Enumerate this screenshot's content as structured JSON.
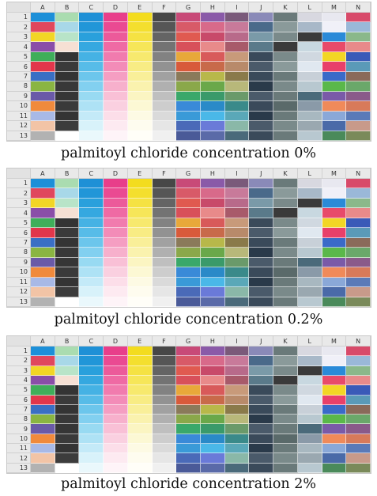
{
  "column_headers": [
    "A",
    "B",
    "C",
    "D",
    "E",
    "F",
    "G",
    "H",
    "I",
    "J",
    "K",
    "L",
    "M",
    "N"
  ],
  "row_headers": [
    "1",
    "2",
    "3",
    "4",
    "5",
    "6",
    "7",
    "8",
    "9",
    "10",
    "11",
    "12",
    "13"
  ],
  "panels": [
    {
      "caption": "palmitoyl chloride concentration 0%"
    },
    {
      "caption": "palmitoyl chloride concentration 0.2%"
    },
    {
      "caption": "palmitoyl chloride concentration 2%"
    }
  ],
  "colors": {
    "col_A": [
      "#1c8fd8",
      "#e0475d",
      "#f2d625",
      "#8a4ea8",
      "#3fae5a",
      "#e2364b",
      "#3a6fc4",
      "#8ab542",
      "#6a5aa8",
      "#f08a3c",
      "#a8b9e6",
      "#f2c4a6",
      "#b2b2b2"
    ],
    "col_B": [
      "#aadcb0",
      "#a8d8e8",
      "#b8e4c8",
      "#f6e0d4",
      "#343434",
      "#3a3a3a",
      "#343434",
      "#383838",
      "#363636",
      "#3a3a3a",
      "#343434",
      "#3c3c3c",
      "#ffffff"
    ],
    "col_C": [
      "#1e90d6",
      "#2196d8",
      "#29a0dc",
      "#35a8e0",
      "#45b2e4",
      "#57bce8",
      "#6cc6ec",
      "#82d0f0",
      "#98daf2",
      "#aee2f5",
      "#c4eaf8",
      "#d8f2fa",
      "#eaf8fc"
    ],
    "col_D": [
      "#e83e8a",
      "#ea4a92",
      "#ec5a9a",
      "#ef6aa4",
      "#f17bae",
      "#f38cb8",
      "#f59ec2",
      "#f7b0cc",
      "#f9c0d6",
      "#fad0e0",
      "#fcdee9",
      "#fdeaf1",
      "#fef4f8"
    ],
    "col_E": [
      "#f3dc1e",
      "#f4df2e",
      "#f5e243",
      "#f6e659",
      "#f7e96e",
      "#f8ec84",
      "#f9ef99",
      "#faf2ae",
      "#fbf5c2",
      "#fcf8d4",
      "#fdfae4",
      "#fefcef",
      "#fffef8"
    ],
    "col_F": [
      "#474747",
      "#565656",
      "#646464",
      "#737373",
      "#828282",
      "#929292",
      "#a1a1a1",
      "#b0b0b0",
      "#bfbfbf",
      "#cdcdcd",
      "#dadada",
      "#e6e6e6",
      "#f0f0f0"
    ],
    "col_G": [
      "#c84a78",
      "#d85a68",
      "#e05a50",
      "#d8505a",
      "#e8a83a",
      "#d85a3a",
      "#8a7a5a",
      "#8aa84a",
      "#3aa86a",
      "#3a8ad8",
      "#3a9ad8",
      "#4a6ab8",
      "#4a5a98"
    ],
    "col_H": [
      "#8a5aa8",
      "#d86a8a",
      "#c84a6a",
      "#e88a8a",
      "#d85a5a",
      "#c86a4a",
      "#b8b84a",
      "#6aa84a",
      "#3a9a6a",
      "#2a8ac8",
      "#4ab8e8",
      "#6a7ad8",
      "#5a6aa8"
    ],
    "col_I": [
      "#7a5a7a",
      "#c87a9a",
      "#b86a8a",
      "#a85a6a",
      "#c89a7a",
      "#b88a6a",
      "#8a7a4a",
      "#b8b87a",
      "#6a9a6a",
      "#3a8a8a",
      "#5aa8b8",
      "#8ab8a8",
      "#4a6a7a"
    ],
    "col_J": [
      "#8a8ab8",
      "#4a6a8a",
      "#7a9aa8",
      "#5a7a8a",
      "#3a4a5a",
      "#4a5a6a",
      "#3a4a5a",
      "#2a3a4a",
      "#4a5a6a",
      "#3a4a5a",
      "#2a3a4a",
      "#4a5a6a",
      "#3a4a5a"
    ],
    "col_K": [
      "#6a7a7a",
      "#8a9a9a",
      "#7a8a8a",
      "#3a3a3a",
      "#7a8a8a",
      "#8a9a9a",
      "#6a7a7a",
      "#7a8a8a",
      "#6a7a7a",
      "#5a6a6a",
      "#6a7a7a",
      "#7a8a8a",
      "#6a7a7a"
    ],
    "col_L": [
      "#d8d8e0",
      "#a8b8c8",
      "#3a3a3a",
      "#c8d8e0",
      "#d0d8e0",
      "#e0e8f0",
      "#c8d0d8",
      "#b8c8d0",
      "#4a6a7a",
      "#8a9aa8",
      "#a8b8c0",
      "#9aa8b0",
      "#b8c8d0"
    ],
    "col_M": [
      "#e8e8f0",
      "#f0f0f8",
      "#2a8ad8",
      "#e84a6a",
      "#f2d625",
      "#e8406a",
      "#3a6ac8",
      "#5ab84a",
      "#7a5aa8",
      "#f08a5a",
      "#8aa8d8",
      "#4a6aa8",
      "#4a8a5a"
    ],
    "col_N": [
      "#d84a6a",
      "#9ab8d8",
      "#8ab88a",
      "#e88a8a",
      "#3a5ab8",
      "#5a9ab8",
      "#8a6a5a",
      "#6aa86a",
      "#8a5a8a",
      "#d87a5a",
      "#5a7ab8",
      "#c89a8a",
      "#7a8a5a"
    ]
  }
}
